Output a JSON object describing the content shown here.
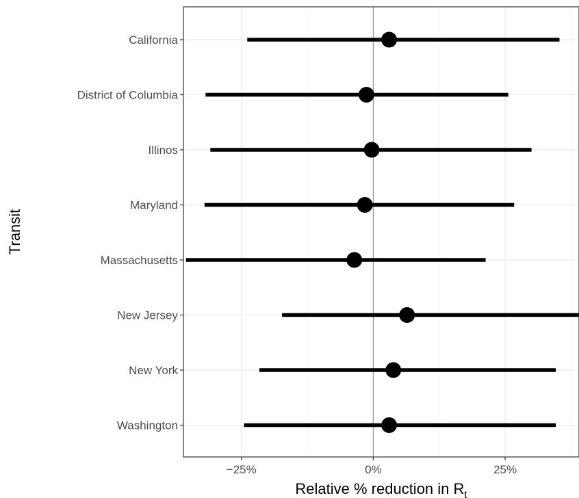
{
  "chart_data": {
    "type": "forest",
    "xlabel": "Relative % reduction in",
    "xlabel_subscript_symbol": "R",
    "xlabel_subscript": "t",
    "ylabel": "Transit",
    "xlim": [
      -36,
      39
    ],
    "x_ticks": [
      -25,
      0,
      25
    ],
    "x_tick_labels": [
      "−25%",
      "0%",
      "25%"
    ],
    "reference_line_x": 0,
    "grid": true,
    "categories": [
      "California",
      "District of Columbia",
      "Illinos",
      "Maryland",
      "Massachusetts",
      "New Jersey",
      "New York",
      "Washington"
    ],
    "estimates": [
      3.0,
      -1.3,
      -0.3,
      -1.6,
      -3.6,
      6.4,
      3.8,
      3.0
    ],
    "lower": [
      -23.9,
      -31.8,
      -30.9,
      -32.0,
      -35.5,
      -17.3,
      -21.6,
      -24.5
    ],
    "upper": [
      35.3,
      25.6,
      30.0,
      26.7,
      21.3,
      39.0,
      34.6,
      34.6
    ]
  }
}
